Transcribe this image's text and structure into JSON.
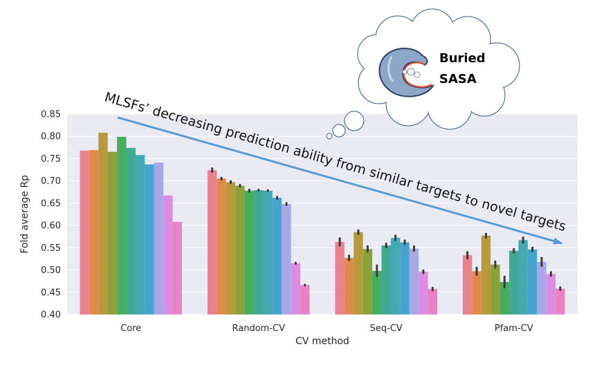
{
  "chart_data": {
    "type": "bar",
    "xlabel": "CV method",
    "ylabel": "Fold average Rp",
    "ylim": [
      0.4,
      0.85
    ],
    "yticks": [
      "0.40",
      "0.45",
      "0.50",
      "0.55",
      "0.60",
      "0.65",
      "0.70",
      "0.75",
      "0.80",
      "0.85"
    ],
    "grid": true,
    "categories": [
      "Core",
      "Random-CV",
      "Seq-CV",
      "Pfam-CV"
    ],
    "series_colors": [
      "#e9838e",
      "#e08a4e",
      "#b79a3e",
      "#8ba23b",
      "#46ad5f",
      "#41a993",
      "#43a9b3",
      "#47a4cf",
      "#a8a8e8",
      "#dd8ce3",
      "#e884c4"
    ],
    "series": [
      {
        "values": [
          0.768,
          0.724,
          0.563,
          0.533
        ]
      },
      {
        "values": [
          0.769,
          0.705,
          0.527,
          0.497
        ]
      },
      {
        "values": [
          0.808,
          0.697,
          0.585,
          0.577
        ]
      },
      {
        "values": [
          0.765,
          0.689,
          0.547,
          0.512
        ]
      },
      {
        "values": [
          0.799,
          0.678,
          0.498,
          0.473
        ]
      },
      {
        "values": [
          0.774,
          0.679,
          0.555,
          0.543
        ]
      },
      {
        "values": [
          0.758,
          0.678,
          0.572,
          0.567
        ]
      },
      {
        "values": [
          0.737,
          0.662,
          0.562,
          0.546
        ]
      },
      {
        "values": [
          0.741,
          0.648,
          0.548,
          0.518
        ]
      },
      {
        "values": [
          0.667,
          0.515,
          0.496,
          0.491
        ]
      },
      {
        "values": [
          0.608,
          0.466,
          0.457,
          0.458
        ]
      }
    ],
    "error_bars": [
      [
        null,
        0.004,
        0.008,
        0.007
      ],
      [
        null,
        0.002,
        0.005,
        0.008
      ],
      [
        null,
        0.002,
        0.004,
        0.004
      ],
      [
        null,
        0.002,
        0.006,
        0.007
      ],
      [
        null,
        0.002,
        0.012,
        0.012
      ],
      [
        null,
        0.001,
        0.004,
        0.004
      ],
      [
        null,
        0.001,
        0.005,
        0.006
      ],
      [
        null,
        0.002,
        0.004,
        0.004
      ],
      [
        null,
        0.002,
        0.005,
        0.009
      ],
      [
        null,
        0.001,
        0.003,
        0.004
      ],
      [
        null,
        0.001,
        0.003,
        0.003
      ]
    ],
    "annotations": {
      "arrow_text": "MLSFs’ decreasing prediction ability from similar targets to  novel targets",
      "cloud_text_line1": "Buried",
      "cloud_text_line2": "SASA"
    }
  },
  "colors": {
    "plot_background": "#eaeaf2",
    "grid": "#ffffff",
    "arrow": "#5b9bd5",
    "cloud_stroke": "#2e5b8a",
    "protein_fill": "#8fa6c8",
    "protein_outline": "#2e4066",
    "ligand_outline": "#e84a2a"
  }
}
